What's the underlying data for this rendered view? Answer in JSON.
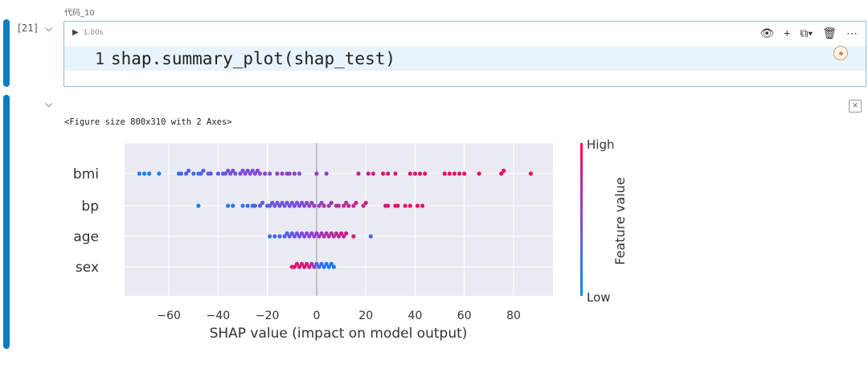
{
  "cell_input": {
    "execution_count": "[21]",
    "name": "代码_10",
    "exec_time": "1.00s",
    "line_number": "1",
    "code": "shap.summary_plot(shap_test)",
    "toolbar": {
      "view_icon": "eye-icon",
      "add_icon": "plus-icon",
      "copy_icon": "copy-icon",
      "delete_icon": "trash-icon",
      "more_icon": "ellipsis-icon"
    }
  },
  "cell_output": {
    "text": "<Figure size 800x310 with 2 Axes>"
  },
  "chart_data": {
    "type": "scatter",
    "xlabel": "SHAP value (impact on model output)",
    "xlim": [
      -78,
      96
    ],
    "xticks": [
      -60,
      -40,
      -20,
      0,
      20,
      40,
      60,
      80
    ],
    "xtick_labels": [
      "−60",
      "−40",
      "−20",
      "0",
      "20",
      "40",
      "60",
      "80"
    ],
    "features": [
      "bmi",
      "bp",
      "age",
      "sex"
    ],
    "colorbar": {
      "label": "Feature value",
      "high": "High",
      "low": "Low",
      "low_color": "#008bfb",
      "high_color": "#ff0052"
    },
    "plot_bg": "#eaeaf2",
    "grid": true,
    "points": {
      "bmi": [
        [
          -72,
          0.05
        ],
        [
          -70,
          0.1
        ],
        [
          -68,
          0.1
        ],
        [
          -64,
          0.05
        ],
        [
          -56,
          0.15
        ],
        [
          -55,
          0.3
        ],
        [
          -53,
          0.3
        ],
        [
          -52,
          0.35
        ],
        [
          -50,
          0.3
        ],
        [
          -48,
          0.2
        ],
        [
          -47,
          0.25
        ],
        [
          -46,
          0.35
        ],
        [
          -44,
          0.3
        ],
        [
          -43,
          0.45
        ],
        [
          -40,
          0.35
        ],
        [
          -38,
          0.35
        ],
        [
          -37,
          0.4
        ],
        [
          -36,
          0.45
        ],
        [
          -35,
          0.5
        ],
        [
          -34,
          0.5
        ],
        [
          -33,
          0.45
        ],
        [
          -31,
          0.5
        ],
        [
          -30,
          0.5
        ],
        [
          -29,
          0.5
        ],
        [
          -28,
          0.55
        ],
        [
          -27,
          0.5
        ],
        [
          -26,
          0.45
        ],
        [
          -25,
          0.5
        ],
        [
          -24,
          0.55
        ],
        [
          -23,
          0.5
        ],
        [
          -21,
          0.55
        ],
        [
          -19,
          0.5
        ],
        [
          -16,
          0.55
        ],
        [
          -14,
          0.6
        ],
        [
          -12,
          0.6
        ],
        [
          -11,
          0.55
        ],
        [
          -9,
          0.6
        ],
        [
          -7,
          0.5
        ],
        [
          0,
          0.6
        ],
        [
          4,
          0.6
        ],
        [
          17,
          0.8
        ],
        [
          21,
          0.8
        ],
        [
          23,
          0.85
        ],
        [
          27,
          0.9
        ],
        [
          29,
          0.85
        ],
        [
          32,
          0.85
        ],
        [
          38,
          0.9
        ],
        [
          40,
          0.9
        ],
        [
          42,
          0.9
        ],
        [
          44,
          0.9
        ],
        [
          52,
          0.95
        ],
        [
          54,
          0.95
        ],
        [
          56,
          0.9
        ],
        [
          58,
          0.9
        ],
        [
          60,
          0.95
        ],
        [
          66,
          0.95
        ],
        [
          75,
          0.95
        ],
        [
          76,
          1.0
        ],
        [
          87,
          1.0
        ]
      ],
      "bp": [
        [
          -48,
          0.1
        ],
        [
          -36,
          0.15
        ],
        [
          -34,
          0.2
        ],
        [
          -30,
          0.25
        ],
        [
          -28,
          0.2
        ],
        [
          -26,
          0.3
        ],
        [
          -25,
          0.3
        ],
        [
          -23,
          0.35
        ],
        [
          -22,
          0.35
        ],
        [
          -20,
          0.4
        ],
        [
          -19,
          0.35
        ],
        [
          -18,
          0.4
        ],
        [
          -17,
          0.45
        ],
        [
          -16,
          0.4
        ],
        [
          -15,
          0.45
        ],
        [
          -14,
          0.4
        ],
        [
          -13,
          0.45
        ],
        [
          -12,
          0.45
        ],
        [
          -11,
          0.5
        ],
        [
          -10,
          0.45
        ],
        [
          -9,
          0.5
        ],
        [
          -8,
          0.5
        ],
        [
          -7,
          0.5
        ],
        [
          -6,
          0.55
        ],
        [
          -5,
          0.5
        ],
        [
          -4,
          0.55
        ],
        [
          -3,
          0.55
        ],
        [
          -2,
          0.55
        ],
        [
          -1,
          0.6
        ],
        [
          1,
          0.6
        ],
        [
          2,
          0.6
        ],
        [
          3,
          0.65
        ],
        [
          5,
          0.65
        ],
        [
          6,
          0.65
        ],
        [
          8,
          0.7
        ],
        [
          9,
          0.7
        ],
        [
          11,
          0.75
        ],
        [
          12,
          0.7
        ],
        [
          13,
          0.75
        ],
        [
          15,
          0.75
        ],
        [
          16,
          0.8
        ],
        [
          19,
          0.8
        ],
        [
          20,
          0.8
        ],
        [
          28,
          0.85
        ],
        [
          29,
          0.85
        ],
        [
          32,
          0.9
        ],
        [
          33,
          0.9
        ],
        [
          36,
          0.9
        ],
        [
          38,
          0.95
        ],
        [
          41,
          0.95
        ],
        [
          43,
          0.95
        ]
      ],
      "age": [
        [
          -19,
          0.2
        ],
        [
          -17,
          0.25
        ],
        [
          -15,
          0.3
        ],
        [
          -13,
          0.35
        ],
        [
          -12,
          0.35
        ],
        [
          -11,
          0.4
        ],
        [
          -10,
          0.4
        ],
        [
          -9,
          0.45
        ],
        [
          -8,
          0.45
        ],
        [
          -7,
          0.45
        ],
        [
          -6,
          0.5
        ],
        [
          -5,
          0.5
        ],
        [
          -4,
          0.5
        ],
        [
          -3,
          0.55
        ],
        [
          -2,
          0.55
        ],
        [
          -1,
          0.55
        ],
        [
          0,
          0.6
        ],
        [
          1,
          0.6
        ],
        [
          2,
          0.65
        ],
        [
          3,
          0.65
        ],
        [
          4,
          0.65
        ],
        [
          5,
          0.7
        ],
        [
          6,
          0.7
        ],
        [
          7,
          0.7
        ],
        [
          8,
          0.75
        ],
        [
          9,
          0.75
        ],
        [
          10,
          0.8
        ],
        [
          11,
          0.75
        ],
        [
          12,
          0.8
        ],
        [
          15,
          0.85
        ],
        [
          22,
          0.3
        ]
      ],
      "sex": [
        [
          -10,
          0.9
        ],
        [
          -9,
          0.9
        ],
        [
          -8,
          0.85
        ],
        [
          -7,
          0.9
        ],
        [
          -6,
          0.85
        ],
        [
          -5,
          0.9
        ],
        [
          -4,
          0.85
        ],
        [
          -3,
          0.8
        ],
        [
          -2,
          0.7
        ],
        [
          -1,
          0.6
        ],
        [
          0,
          0.3
        ],
        [
          1,
          0.25
        ],
        [
          2,
          0.2
        ],
        [
          3,
          0.15
        ],
        [
          4,
          0.15
        ],
        [
          5,
          0.1
        ],
        [
          6,
          0.1
        ],
        [
          7,
          0.1
        ]
      ]
    }
  }
}
